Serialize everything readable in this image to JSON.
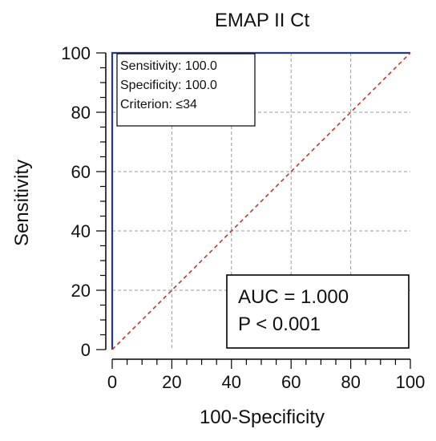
{
  "chart_data": {
    "type": "line",
    "title": "EMAP II Ct",
    "xlabel": "100-Specificity",
    "ylabel": "Sensitivity",
    "xlim": [
      0,
      100
    ],
    "ylim": [
      0,
      100
    ],
    "x_ticks": [
      "0",
      "20",
      "40",
      "60",
      "80",
      "100"
    ],
    "y_ticks": [
      "0",
      "20",
      "40",
      "60",
      "80",
      "100"
    ],
    "grid": true,
    "series": [
      {
        "color": "#1f3a93",
        "style": "solid",
        "x": [
          0,
          0,
          100
        ],
        "y": [
          0,
          100,
          100
        ]
      },
      {
        "color": "#c0392b",
        "style": "dashed",
        "x": [
          0,
          100
        ],
        "y": [
          0,
          100
        ]
      }
    ],
    "annotations": {
      "criterion_box": [
        "Sensitivity: 100.0",
        "Specificity: 100.0",
        "Criterion: ≤34"
      ],
      "stats_box": [
        "AUC = 1.000",
        "P < 0.001"
      ]
    }
  }
}
